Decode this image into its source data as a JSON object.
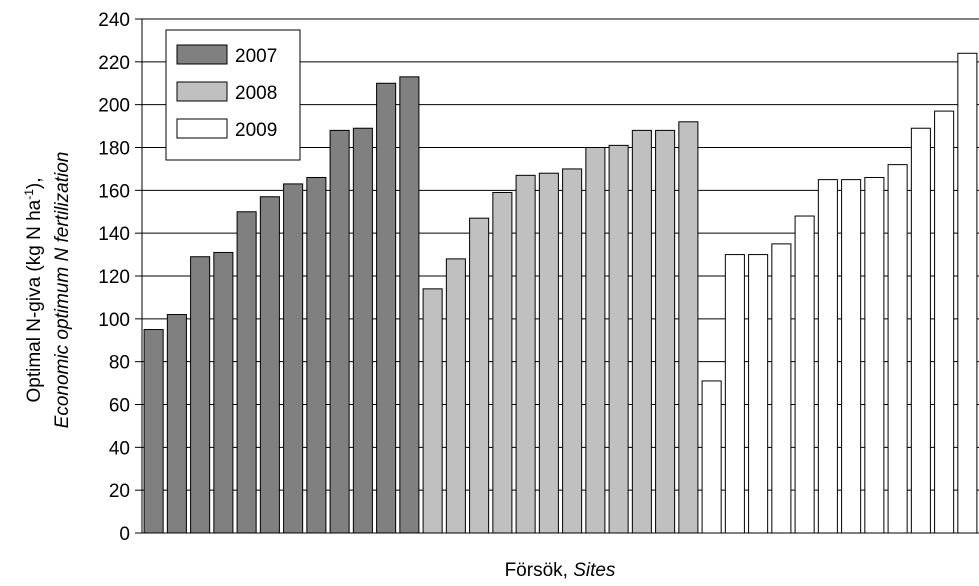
{
  "chart_data": {
    "type": "bar",
    "title": "",
    "xlabel": "Försök, ",
    "xlabel_italic": "Sites",
    "ylabel": "Optimal N-giva (kg N ha",
    "ylabel_sup": "-1",
    "ylabel_close": "),",
    "ylabel_italic": "Economic optimum N fertilization",
    "ylim": [
      0,
      240
    ],
    "ytick_step": 20,
    "yticks": [
      "0",
      "20",
      "40",
      "60",
      "80",
      "100",
      "120",
      "140",
      "160",
      "180",
      "200",
      "220",
      "240"
    ],
    "grid": "horizontal",
    "legend_position": "top-left",
    "series": [
      {
        "name": "2007",
        "color": "#808080",
        "values": [
          95,
          102,
          129,
          131,
          150,
          157,
          163,
          166,
          188,
          189,
          210,
          213
        ]
      },
      {
        "name": "2008",
        "color": "#c0c0c0",
        "values": [
          114,
          128,
          147,
          159,
          167,
          168,
          170,
          180,
          181,
          188,
          188,
          192
        ]
      },
      {
        "name": "2009",
        "color": "#ffffff",
        "values": [
          71,
          130,
          130,
          135,
          148,
          165,
          165,
          166,
          172,
          189,
          197,
          224
        ]
      }
    ]
  }
}
